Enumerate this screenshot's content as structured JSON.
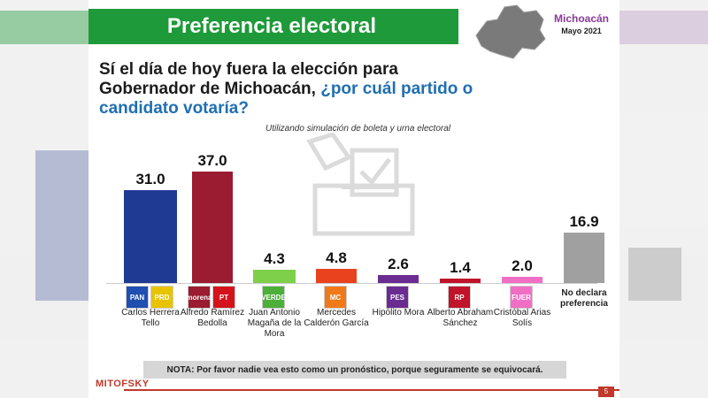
{
  "header": {
    "title": "Preferencia electoral"
  },
  "region": {
    "name": "Michoacán",
    "date": "Mayo 2021"
  },
  "question": {
    "part1": "Sí el día de hoy fuera la elección para Gobernador de Michoacán, ",
    "part2": "¿por cuál partido o candidato votaría?"
  },
  "subtitle": "Utilizando simulación de boleta y urna electoral",
  "note": "NOTA: Por favor nadie vea esto como un pronóstico, porque seguramente se equivocará.",
  "brand": "MITOFSKY",
  "page_number": "5",
  "chart_data": {
    "type": "bar",
    "categories": [
      "Carlos Herrera Tello",
      "Alfredo Ramírez Bedolla",
      "Juan Antonio Magaña de la Mora",
      "Mercedes Calderón García",
      "Hipólito Mora",
      "Alberto Abraham Sánchez",
      "Cristóbal Arias Solís",
      "No declara preferencia"
    ],
    "values": [
      31.0,
      37.0,
      4.3,
      4.8,
      2.6,
      1.4,
      2.0,
      16.9
    ],
    "value_labels": [
      "31.0",
      "37.0",
      "4.3",
      "4.8",
      "2.6",
      "1.4",
      "2.0",
      "16.9"
    ],
    "colors": [
      "#1f3a93",
      "#9b1b30",
      "#7ed04b",
      "#e8431e",
      "#6a2c91",
      "#c0142b",
      "#f06fc4",
      "#a0a0a0"
    ],
    "logos": [
      [
        {
          "label": "PAN",
          "color": "#1f4fb0"
        },
        {
          "label": "PRD",
          "color": "#e8c300"
        }
      ],
      [
        {
          "label": "morena",
          "color": "#9b1b30"
        },
        {
          "label": "PT",
          "color": "#d4121c"
        }
      ],
      [
        {
          "label": "VERDE",
          "color": "#4caf3a"
        }
      ],
      [
        {
          "label": "MC",
          "color": "#f07a1a"
        }
      ],
      [
        {
          "label": "PES",
          "color": "#6a2c91"
        }
      ],
      [
        {
          "label": "RP",
          "color": "#c0142b"
        }
      ],
      [
        {
          "label": "FUERZA MÉXICO",
          "color": "#f06fc4"
        }
      ],
      []
    ],
    "ylim": [
      0,
      40
    ]
  }
}
